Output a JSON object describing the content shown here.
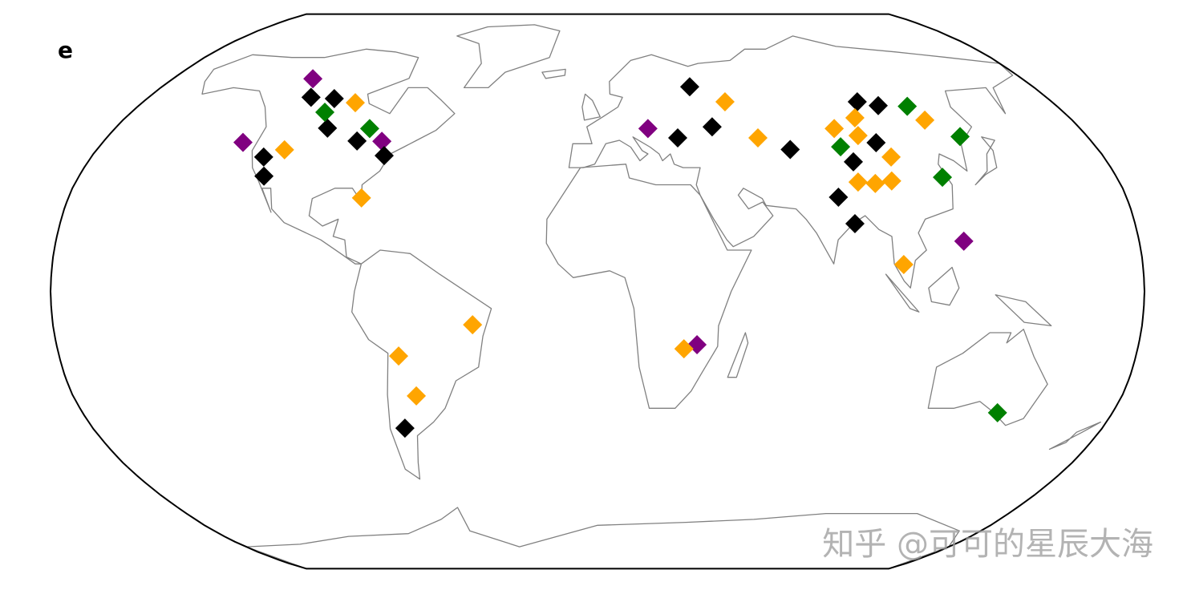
{
  "panel_label": "e",
  "watermark": "知乎 @可可的星辰大海",
  "chart_data": {
    "type": "scatter",
    "projection": "robinson",
    "marker": "diamond",
    "series": [
      {
        "color": "#800080",
        "x": [
          -120.7,
          -129,
          -78.6,
          18.8,
          33.1,
          121.7
        ],
        "values": [
          62.9,
          43.4,
          43.7,
          47.5,
          -15.5,
          14.6
        ]
      },
      {
        "color": "#000000",
        "x": [
          -114.9,
          -105.2,
          -100.8,
          -87.7,
          -76,
          -118.7,
          -115.8,
          -68.7,
          29.4,
          38.1,
          42.9,
          69.3,
          102.9,
          110.1,
          101.3,
          90.4,
          82.0,
          86.2
        ],
        "values": [
          57,
          56.6,
          47.6,
          43.8,
          39.5,
          39.1,
          33.5,
          -39.8,
          44.7,
          60.3,
          48.0,
          41.3,
          55.6,
          54.4,
          43.3,
          37.7,
          27.4,
          19.7
        ]
      },
      {
        "color": "#ffa500",
        "x": [
          -95.7,
          -112.5,
          -80.3,
          -41.3,
          -66.5,
          -62.2,
          28.8,
          50.5,
          58.8,
          124.1,
          88.3,
          98.1,
          95.9,
          104.4,
          89.9,
          95.7,
          101.6,
          101.1
        ],
        "values": [
          55.3,
          41.2,
          27.2,
          -9.7,
          -18.8,
          -30.4,
          -16.7,
          55.6,
          44.7,
          50,
          47.5,
          50.7,
          45.4,
          39.1,
          31.8,
          31.4,
          32.1,
          7.8
        ]
      },
      {
        "color": "#008000",
        "x": [
          -105.3,
          -85,
          121.3,
          87.8,
          133.2,
          119.6,
          139.8
        ],
        "values": [
          52.4,
          47.5,
          54.2,
          42.1,
          45.1,
          33.2,
          -35.3
        ]
      }
    ]
  }
}
